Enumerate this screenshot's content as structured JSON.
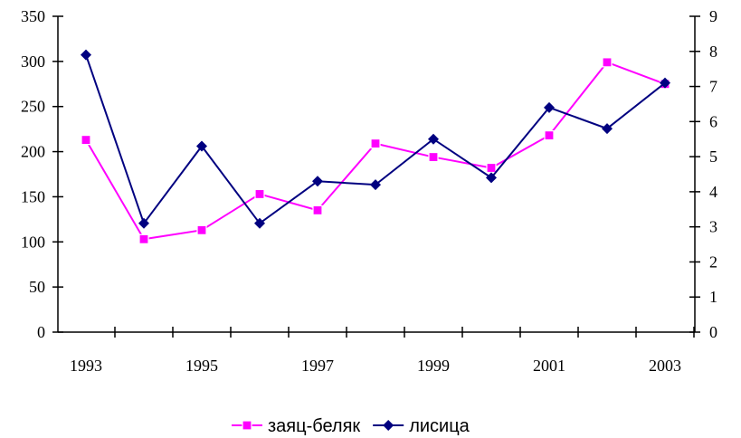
{
  "chart_data": {
    "type": "line",
    "title": "",
    "xlabel": "",
    "ylabel": "",
    "x": [
      1993,
      1994,
      1995,
      1996,
      1997,
      1998,
      1999,
      2000,
      2001,
      2002,
      2003
    ],
    "x_tick_labels": [
      "1993",
      "1995",
      "1997",
      "1999",
      "2001",
      "2003"
    ],
    "y_left_range": [
      0,
      350
    ],
    "y_left_ticks": [
      "0",
      "50",
      "100",
      "150",
      "200",
      "250",
      "300",
      "350"
    ],
    "y_right_range": [
      0,
      9
    ],
    "y_right_ticks": [
      "0",
      "1",
      "2",
      "3",
      "4",
      "5",
      "6",
      "7",
      "8",
      "9"
    ],
    "grid": false,
    "legend_position": "bottom",
    "series": [
      {
        "name": "заяц-беляк",
        "axis": "left",
        "color": "#ff00ff",
        "marker": "square",
        "values": [
          213,
          103,
          113,
          153,
          135,
          209,
          194,
          182,
          218,
          299,
          275
        ]
      },
      {
        "name": "лисица",
        "axis": "right",
        "color": "#000080",
        "marker": "diamond",
        "values": [
          7.9,
          3.1,
          5.3,
          3.1,
          4.3,
          4.2,
          5.5,
          4.4,
          6.4,
          5.8,
          7.1
        ]
      }
    ]
  }
}
